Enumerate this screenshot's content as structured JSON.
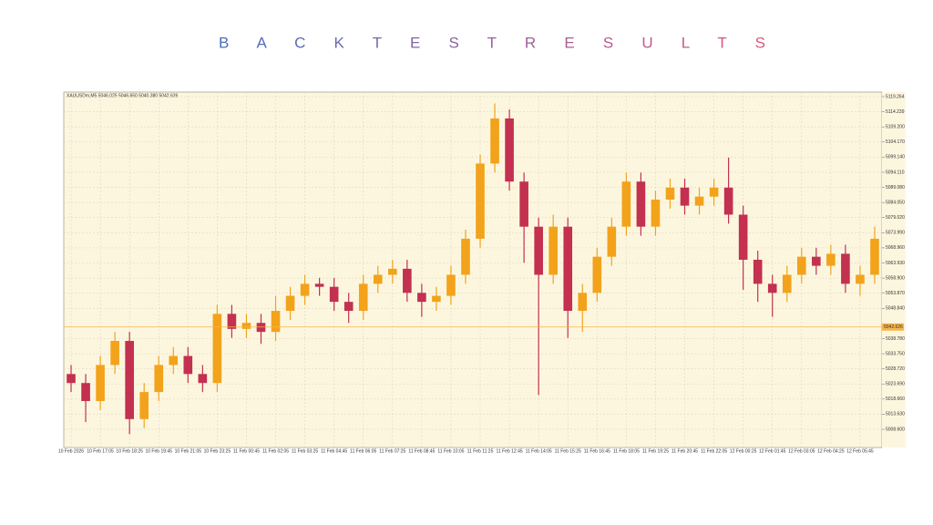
{
  "chart_data": {
    "type": "candlestick",
    "title": "B A C K T E S T R E S U L T S",
    "title_colors": [
      "#4a6fbd",
      "#e0557a"
    ],
    "header": "XAUUSDm,M5 5046.025 5046.650 5040.380 5042.626",
    "categories": [
      "10 Feb 2026",
      null,
      "10 Feb 17:05",
      null,
      "10 Feb 18:25",
      null,
      "10 Feb 19:45",
      null,
      "10 Feb 21:05",
      null,
      "10 Feb 23:25",
      null,
      "11 Feb 00:45",
      null,
      "11 Feb 02:05",
      null,
      "11 Feb 03:25",
      null,
      "11 Feb 04:45",
      null,
      "11 Feb 06:05",
      null,
      "11 Feb 07:25",
      null,
      "11 Feb 08:45",
      null,
      "11 Feb 10:05",
      null,
      "11 Feb 11:25",
      null,
      "11 Feb 12:45",
      null,
      "11 Feb 14:05",
      null,
      "11 Feb 15:25",
      null,
      "11 Feb 16:45",
      null,
      "11 Feb 18:05",
      null,
      "11 Feb 19:25",
      null,
      "11 Feb 20:45",
      null,
      "11 Feb 22:05",
      null,
      "12 Feb 00:25",
      null,
      "12 Feb 01:45",
      null,
      "12 Feb 03:05",
      null,
      "12 Feb 04:25",
      null,
      "12 Feb 05:45",
      null
    ],
    "open": [
      5027,
      5024,
      5018,
      5030,
      5038,
      5012,
      5021,
      5030,
      5033,
      5027,
      5024,
      5047,
      5042,
      5044,
      5041,
      5048,
      5053,
      5057,
      5056,
      5051,
      5048,
      5057,
      5060,
      5062,
      5054,
      5051,
      5053,
      5060,
      5072,
      5097,
      5112,
      5091,
      5076,
      5060,
      5076,
      5048,
      5054,
      5066,
      5076,
      5091,
      5076,
      5085,
      5089,
      5083,
      5086,
      5089,
      5080,
      5065,
      5057,
      5054,
      5060,
      5066,
      5063,
      5067,
      5057,
      5060
    ],
    "high": [
      5030,
      5027,
      5033,
      5041,
      5041,
      5024,
      5033,
      5036,
      5036,
      5030,
      5050,
      5050,
      5047,
      5047,
      5053,
      5056,
      5060,
      5059,
      5059,
      5054,
      5060,
      5063,
      5065,
      5065,
      5057,
      5056,
      5063,
      5075,
      5100,
      5117,
      5115,
      5094,
      5079,
      5080,
      5079,
      5057,
      5069,
      5079,
      5094,
      5094,
      5088,
      5092,
      5092,
      5089,
      5092,
      5099,
      5083,
      5068,
      5060,
      5063,
      5069,
      5069,
      5070,
      5070,
      5063,
      5076
    ],
    "low": [
      5021,
      5011,
      5015,
      5027,
      5007,
      5009,
      5018,
      5027,
      5024,
      5021,
      5021,
      5039,
      5039,
      5037,
      5038,
      5045,
      5050,
      5053,
      5048,
      5044,
      5045,
      5054,
      5057,
      5051,
      5046,
      5048,
      5050,
      5057,
      5069,
      5094,
      5088,
      5064,
      5020,
      5057,
      5039,
      5041,
      5051,
      5063,
      5073,
      5073,
      5073,
      5082,
      5080,
      5080,
      5083,
      5077,
      5055,
      5051,
      5046,
      5051,
      5057,
      5060,
      5060,
      5054,
      5053,
      5057
    ],
    "close": [
      5024,
      5018,
      5030,
      5038,
      5012,
      5021,
      5030,
      5033,
      5027,
      5024,
      5047,
      5042,
      5044,
      5041,
      5048,
      5053,
      5057,
      5056,
      5051,
      5048,
      5057,
      5060,
      5062,
      5054,
      5051,
      5053,
      5060,
      5072,
      5097,
      5112,
      5091,
      5076,
      5060,
      5076,
      5048,
      5054,
      5066,
      5076,
      5091,
      5076,
      5085,
      5089,
      5083,
      5086,
      5089,
      5080,
      5065,
      5057,
      5054,
      5060,
      5066,
      5063,
      5067,
      5057,
      5060,
      5072
    ],
    "up_color": "#f2a31b",
    "down_color": "#c33050",
    "price_line": 5042.626,
    "price_line_color": "#f5b54a",
    "ylim": [
      5002.54,
      5120.78
    ],
    "yticks": [
      5119.264,
      5114.239,
      {
        "value": 5109.2,
        "label": "5109.200"
      },
      {
        "value": 5104.17,
        "label": "5104.170"
      },
      {
        "value": 5099.14,
        "label": "5099.140"
      },
      {
        "value": 5094.11,
        "label": "5094.110"
      },
      {
        "value": 5089.08,
        "label": "5089.080"
      },
      {
        "value": 5084.05,
        "label": "5084.050"
      },
      {
        "value": 5079.02,
        "label": "5079.020"
      },
      {
        "value": 5073.99,
        "label": "5073.990"
      },
      {
        "value": 5068.96,
        "label": "5068.960"
      },
      {
        "value": 5063.93,
        "label": "5063.930"
      },
      {
        "value": 5058.9,
        "label": "5058.900"
      },
      {
        "value": 5053.87,
        "label": "5053.870"
      },
      {
        "value": 5048.84,
        "label": "5048.840"
      },
      {
        "value": 5038.78,
        "label": "5038.780"
      },
      {
        "value": 5033.75,
        "label": "5033.750"
      },
      {
        "value": 5028.72,
        "label": "5028.720"
      },
      {
        "value": 5023.69,
        "label": "5023.690"
      },
      {
        "value": 5018.66,
        "label": "5018.660"
      },
      {
        "value": 5013.63,
        "label": "5013.630"
      },
      {
        "value": 5008.6,
        "label": "5008.600"
      }
    ],
    "grid": true
  }
}
